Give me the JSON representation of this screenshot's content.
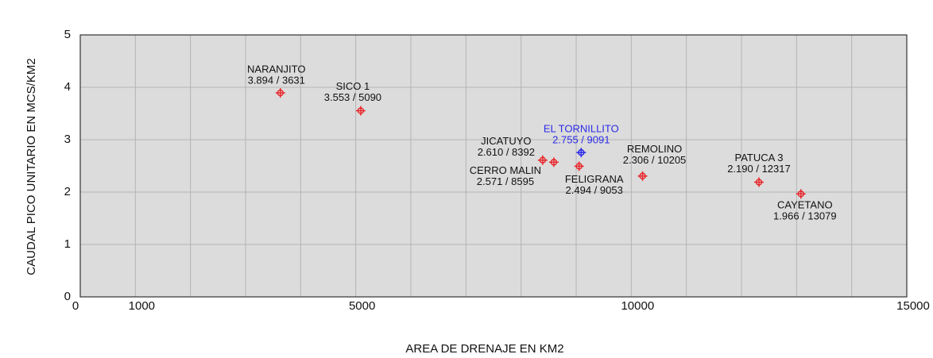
{
  "chart_data": {
    "type": "scatter",
    "x_label": "AREA DE DRENAJE EN KM2",
    "y_label": "CAUDAL PICO UNITARIO EN MCS/KM2",
    "names": [
      "NARANJITO",
      "SICO 1",
      "JICATUYO",
      "CERRO MALIN",
      "EL TORNILLITO",
      "FELIGRANA",
      "REMOLINO",
      "PATUCA 3",
      "CAYETANO"
    ],
    "x": [
      3631,
      5090,
      8392,
      8595,
      9091,
      9053,
      10205,
      12317,
      13079
    ],
    "values": [
      3.894,
      3.553,
      2.61,
      2.571,
      2.755,
      2.494,
      2.306,
      2.19,
      1.966
    ],
    "value_labels": [
      "3.894 / 3631",
      "3.553 / 5090",
      "2.610 / 8392",
      "2.571 / 8595",
      "2.755 / 9091",
      "2.494 / 9053",
      "2.306 / 10205",
      "2.190 / 12317",
      "1.966 / 13079"
    ],
    "colors": [
      "#e8262a",
      "#e8262a",
      "#e8262a",
      "#e8262a",
      "#2a2ae8",
      "#e8262a",
      "#e8262a",
      "#e8262a",
      "#e8262a"
    ],
    "xlim": [
      0,
      15000
    ],
    "ylim": [
      0,
      5
    ],
    "xticks": [
      0,
      1000,
      5000,
      10000,
      15000
    ],
    "xminorticks": [
      1000,
      2000,
      3000,
      4000,
      5000,
      6000,
      7000,
      8000,
      9000,
      10000,
      11000,
      12000,
      13000,
      14000
    ],
    "yticks": [
      0,
      1,
      2,
      3,
      4,
      5
    ],
    "grid": true
  }
}
